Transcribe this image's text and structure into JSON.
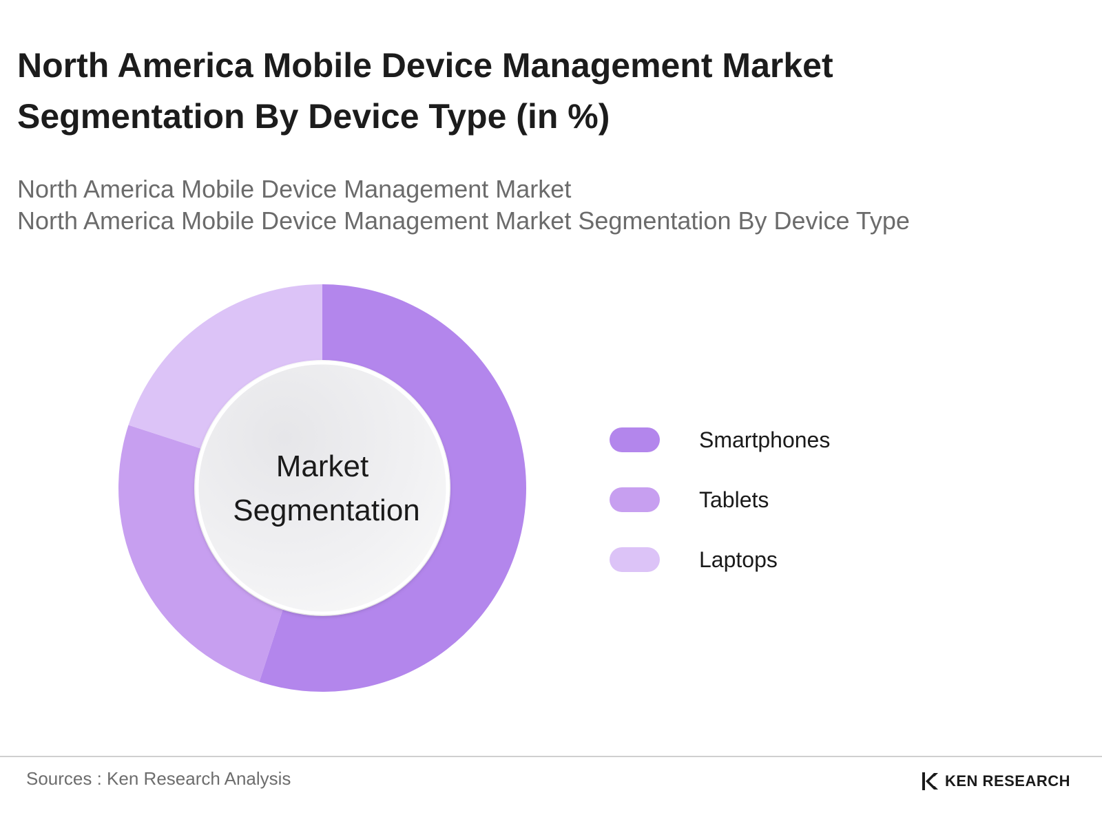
{
  "title_line1": "North America Mobile Device Management Market",
  "title_line2": "Segmentation By Device Type (in %)",
  "subtitle_line1": "North America Mobile Device Management Market",
  "subtitle_line2": "North America Mobile Device Management Market Segmentation By Device Type",
  "center_label_line1": "Market",
  "center_label_line2": "Segmentation",
  "sources": "Sources : Ken Research Analysis",
  "brand": "KEN RESEARCH",
  "chart_data": {
    "type": "pie",
    "donut": true,
    "start_angle": "12 o'clock",
    "direction": "clockwise",
    "legend_placement": "right",
    "series": [
      {
        "name": "Smartphones",
        "value": 55,
        "color": "#b386ec"
      },
      {
        "name": "Tablets",
        "value": 25,
        "color": "#c79ff0"
      },
      {
        "name": "Laptops",
        "value": 20,
        "color": "#dcc3f7"
      }
    ]
  }
}
